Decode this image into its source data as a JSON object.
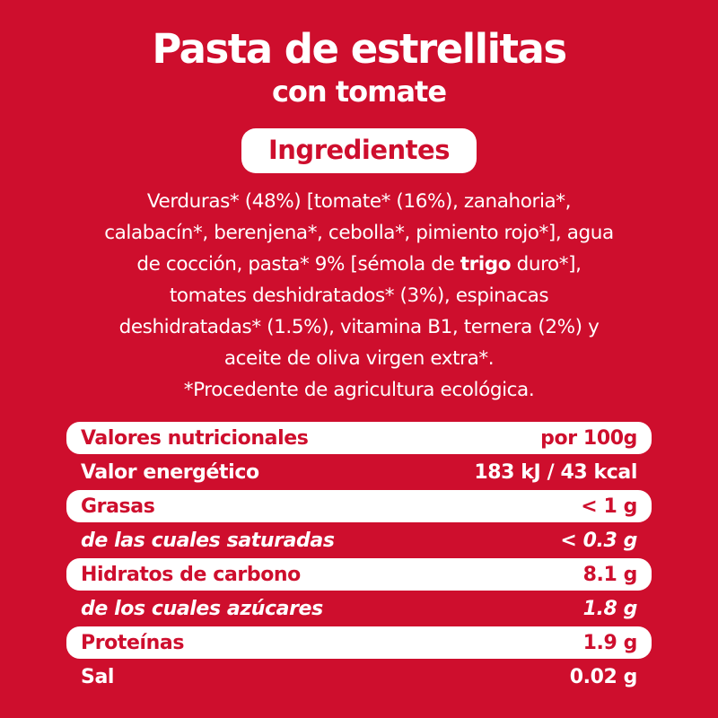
{
  "colors": {
    "background_red": "#ce0e2d",
    "accent_red_text": "#ce0e2d",
    "white": "#ffffff"
  },
  "header": {
    "title": "Pasta de estrellitas",
    "subtitle": "con tomate"
  },
  "ingredients": {
    "badge": "Ingredientes",
    "line1": "Verduras* (48%) [tomate* (16%), zanahoria*,",
    "line2": "calabacín*, berenjena*, cebolla*, pimiento rojo*], agua",
    "line3_pre": "de cocción, pasta* 9% [sémola de ",
    "line3_bold": "trigo",
    "line3_post": " duro*],",
    "line4": "tomates deshidratados* (3%), espinacas",
    "line5": "deshidratadas* (1.5%), vitamina B1, ternera (2%) y",
    "line6": "aceite de oliva virgen extra*.",
    "footnote": "*Procedente de agricultura ecológica."
  },
  "nutrition": {
    "rows": [
      {
        "label": "Valores nutricionales",
        "value": "por 100g"
      },
      {
        "label": "Valor energético",
        "value": "183 kJ / 43 kcal"
      },
      {
        "label": "Grasas",
        "value": "< 1 g"
      },
      {
        "label": "de las cuales saturadas",
        "value": "< 0.3 g"
      },
      {
        "label": "Hidratos de carbono",
        "value": "8.1 g"
      },
      {
        "label": "de los cuales azúcares",
        "value": "1.8 g"
      },
      {
        "label": "Proteínas",
        "value": "1.9 g"
      },
      {
        "label": "Sal",
        "value": "0.02 g"
      }
    ]
  }
}
